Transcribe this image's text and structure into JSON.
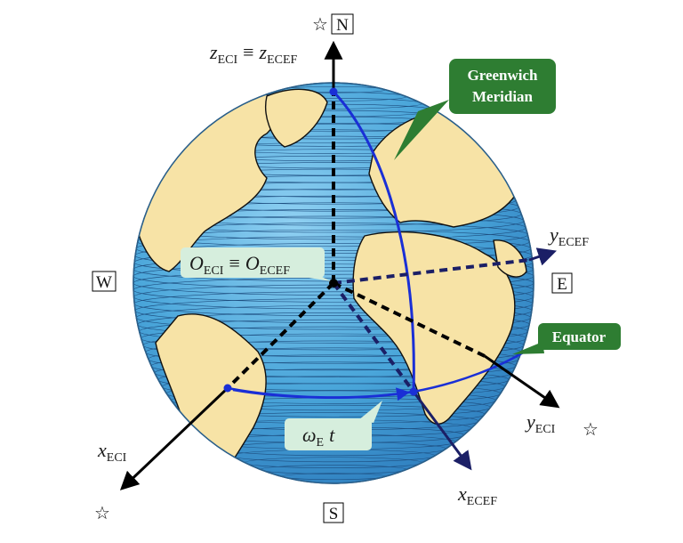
{
  "directions": {
    "north": "N",
    "south": "S",
    "east": "E",
    "west": "W"
  },
  "stars": [
    "☆",
    "☆",
    "☆"
  ],
  "labels": {
    "z_axis": {
      "sym": "z",
      "sub": "ECI",
      "eq": "≡",
      "sym2": "z",
      "sub2": "ECEF"
    },
    "origin": {
      "sym": "O",
      "sub": "ECI",
      "eq": "≡",
      "sym2": "O",
      "sub2": "ECEF"
    },
    "y_ecef": {
      "sym": "y",
      "sub": "ECEF"
    },
    "y_eci": {
      "sym": "y",
      "sub": "ECI"
    },
    "x_eci": {
      "sym": "x",
      "sub": "ECI"
    },
    "x_ecef": {
      "sym": "x",
      "sub": "ECEF"
    },
    "rotation": {
      "sym": "ω",
      "sub": "E",
      "var": "t"
    }
  },
  "callouts": {
    "greenwich_line1": "Greenwich",
    "greenwich_line2": "Meridian",
    "equator": "Equator"
  },
  "colors": {
    "ocean": "#5fb0de",
    "land": "#f7e3a6",
    "meridian": "#1a2fd6",
    "ecef_axis": "#1b1f66",
    "callout_green": "#2e7d32",
    "origin_box": "#d6eedd"
  }
}
